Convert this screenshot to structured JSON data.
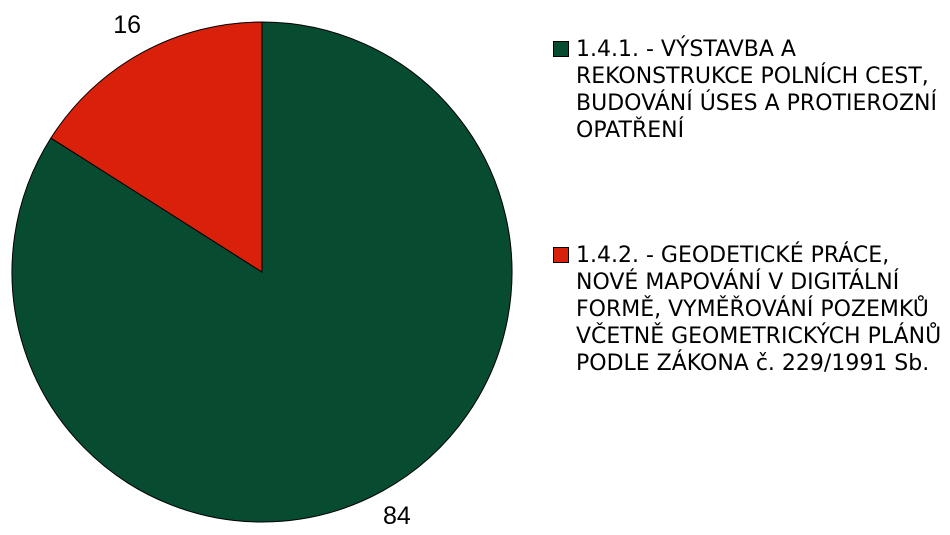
{
  "chart_data": {
    "type": "pie",
    "categories": [
      "1.4.1. - VÝSTAVBA A REKONSTRUKCE POLNÍCH CEST, BUDOVÁNÍ ÚSES A PROTIEROZNÍ OPATŘENÍ",
      "1.4.2. - GEODETICKÉ PRÁCE, NOVÉ MAPOVÁNÍ V DIGITÁLNÍ FORMĚ, VYMĚŘOVÁNÍ POZEMKŮ VČETNĚ GEOMETRICKÝCH PLÁNŮ PODLE ZÁKONA č. 229/1991 Sb."
    ],
    "values": [
      84,
      16
    ],
    "colors": [
      "#074c31",
      "#d9200a"
    ],
    "legend": "right"
  }
}
